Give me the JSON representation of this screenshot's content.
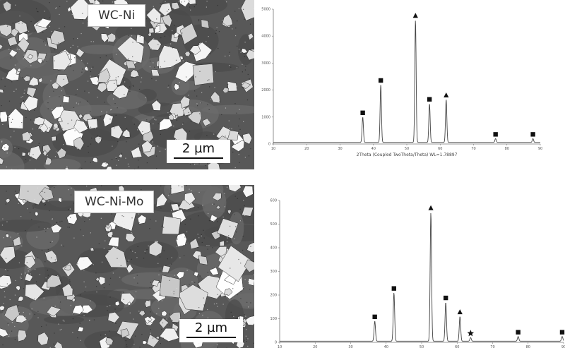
{
  "panels": {
    "top": {
      "sample_label": "WC-Ni",
      "scale_bar_label": "2 µm"
    },
    "bottom": {
      "sample_label": "WC-Ni-Mo",
      "scale_bar_label": "2 µm"
    }
  },
  "chart_data": [
    {
      "type": "line",
      "title": "",
      "xlabel": "2Theta (Coupled TwoTheta/Theta) WL=1.78897",
      "ylabel": "",
      "xlim": [
        10,
        90
      ],
      "ylim": [
        0,
        5000
      ],
      "x_ticks": [
        10,
        20,
        30,
        40,
        50,
        60,
        70,
        80,
        90
      ],
      "y_ticks": [
        0,
        1000,
        2000,
        3000,
        4000,
        5000
      ],
      "peaks": [
        {
          "x": 36.8,
          "y": 1000,
          "marker": "square"
        },
        {
          "x": 42.2,
          "y": 2200,
          "marker": "square"
        },
        {
          "x": 52.6,
          "y": 4600,
          "marker": "triangle"
        },
        {
          "x": 56.8,
          "y": 1500,
          "marker": "square"
        },
        {
          "x": 61.8,
          "y": 1650,
          "marker": "triangle"
        },
        {
          "x": 76.6,
          "y": 200,
          "marker": "square"
        },
        {
          "x": 87.8,
          "y": 200,
          "marker": "square"
        }
      ],
      "baseline": 60
    },
    {
      "type": "line",
      "title": "",
      "xlabel": "",
      "ylabel": "",
      "xlim": [
        10,
        90
      ],
      "ylim": [
        0,
        600
      ],
      "x_ticks": [
        10,
        20,
        30,
        40,
        50,
        60,
        70,
        80,
        90
      ],
      "y_ticks": [
        0,
        100,
        200,
        300,
        400,
        500,
        600
      ],
      "peaks": [
        {
          "x": 36.8,
          "y": 90,
          "marker": "square"
        },
        {
          "x": 42.2,
          "y": 210,
          "marker": "square"
        },
        {
          "x": 52.6,
          "y": 550,
          "marker": "triangle"
        },
        {
          "x": 56.8,
          "y": 170,
          "marker": "square"
        },
        {
          "x": 60.8,
          "y": 110,
          "marker": "triangle"
        },
        {
          "x": 63.8,
          "y": 20,
          "marker": "star"
        },
        {
          "x": 77.2,
          "y": 25,
          "marker": "square"
        },
        {
          "x": 89.6,
          "y": 25,
          "marker": "square"
        }
      ],
      "baseline": 5
    }
  ]
}
